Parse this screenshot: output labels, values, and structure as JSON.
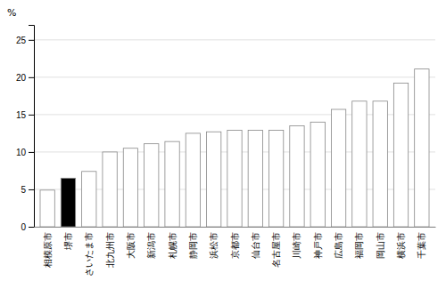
{
  "chart_data": {
    "type": "bar",
    "ylabel": "%",
    "categories": [
      "相模原市",
      "堺市",
      "さいたま市",
      "北九州市",
      "大阪市",
      "新潟市",
      "札幌市",
      "静岡市",
      "浜松市",
      "京都市",
      "仙台市",
      "名古屋市",
      "川崎市",
      "神戸市",
      "広島市",
      "福岡市",
      "岡山市",
      "横浜市",
      "千葉市"
    ],
    "values": [
      4.9,
      6.5,
      7.4,
      10.0,
      10.5,
      11.1,
      11.4,
      12.5,
      12.7,
      12.9,
      12.9,
      12.9,
      13.5,
      14.0,
      15.7,
      16.8,
      16.8,
      19.2,
      21.1
    ],
    "colors": [
      "white",
      "black",
      "white",
      "white",
      "white",
      "white",
      "white",
      "white",
      "white",
      "white",
      "white",
      "white",
      "white",
      "white",
      "white",
      "white",
      "white",
      "white",
      "white"
    ],
    "ylim": [
      0,
      27
    ],
    "yticks": [
      0,
      5,
      10,
      15,
      20,
      25
    ],
    "grid": true
  }
}
